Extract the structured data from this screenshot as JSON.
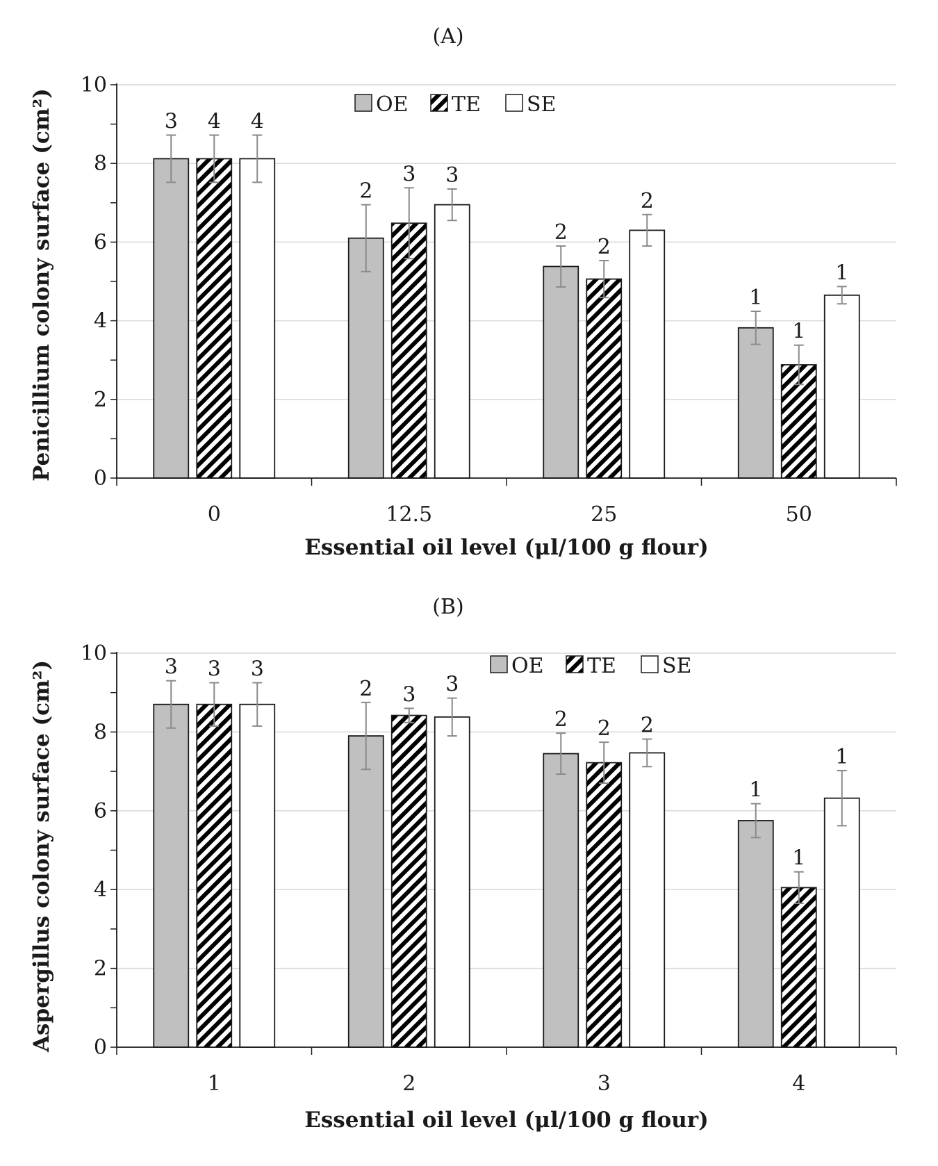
{
  "chart_data": [
    {
      "type": "bar",
      "panel_label": "A",
      "title": "(A)",
      "xlabel": "Essential oil level (μl/100 g flour)",
      "ylabel": "Penicillium colony surface (cm²)",
      "ylim": [
        0,
        10
      ],
      "yticks": [
        "0",
        "2",
        "4",
        "6",
        "8",
        "10"
      ],
      "grid": true,
      "legend_position": "top-center",
      "categories": [
        "0",
        "12.5",
        "25",
        "50"
      ],
      "series": [
        {
          "name": "OE",
          "style": "gray",
          "values": [
            8.12,
            6.1,
            5.38,
            3.82
          ],
          "errors": [
            0.6,
            0.85,
            0.52,
            0.42
          ],
          "labels": [
            "3",
            "2",
            "2",
            "1"
          ]
        },
        {
          "name": "TE",
          "style": "hatched",
          "values": [
            8.12,
            6.48,
            5.06,
            2.88
          ],
          "errors": [
            0.6,
            0.9,
            0.47,
            0.5
          ],
          "labels": [
            "4",
            "3",
            "2",
            "1"
          ]
        },
        {
          "name": "SE",
          "style": "white",
          "values": [
            8.12,
            6.95,
            6.3,
            4.65
          ],
          "errors": [
            0.6,
            0.4,
            0.4,
            0.22
          ],
          "labels": [
            "4",
            "3",
            "2",
            "1"
          ]
        }
      ]
    },
    {
      "type": "bar",
      "panel_label": "B",
      "title": "(B)",
      "xlabel": "Essential oil level (μl/100 g flour)",
      "ylabel": "Aspergillus colony surface (cm²)",
      "ylim": [
        0,
        10
      ],
      "yticks": [
        "0",
        "2",
        "4",
        "6",
        "8",
        "10"
      ],
      "grid": true,
      "legend_position": "top-center",
      "categories": [
        "1",
        "2",
        "3",
        "4"
      ],
      "series": [
        {
          "name": "OE",
          "style": "gray",
          "values": [
            8.7,
            7.9,
            7.45,
            5.75
          ],
          "errors": [
            0.6,
            0.85,
            0.52,
            0.43
          ],
          "labels": [
            "3",
            "2",
            "2",
            "1"
          ]
        },
        {
          "name": "TE",
          "style": "hatched",
          "values": [
            8.7,
            8.42,
            7.22,
            4.05
          ],
          "errors": [
            0.55,
            0.18,
            0.52,
            0.4
          ],
          "labels": [
            "3",
            "3",
            "2",
            "1"
          ]
        },
        {
          "name": "SE",
          "style": "white",
          "values": [
            8.7,
            8.38,
            7.47,
            6.32
          ],
          "errors": [
            0.55,
            0.48,
            0.35,
            0.7
          ],
          "labels": [
            "3",
            "3",
            "2",
            "1"
          ]
        }
      ]
    }
  ],
  "colors": {
    "gray": "#c0c0c0",
    "white": "#ffffff",
    "hatch": "#000000",
    "edge": "#1a1a1a",
    "grid": "#d9d9d9",
    "error": "#8a8a8a"
  }
}
